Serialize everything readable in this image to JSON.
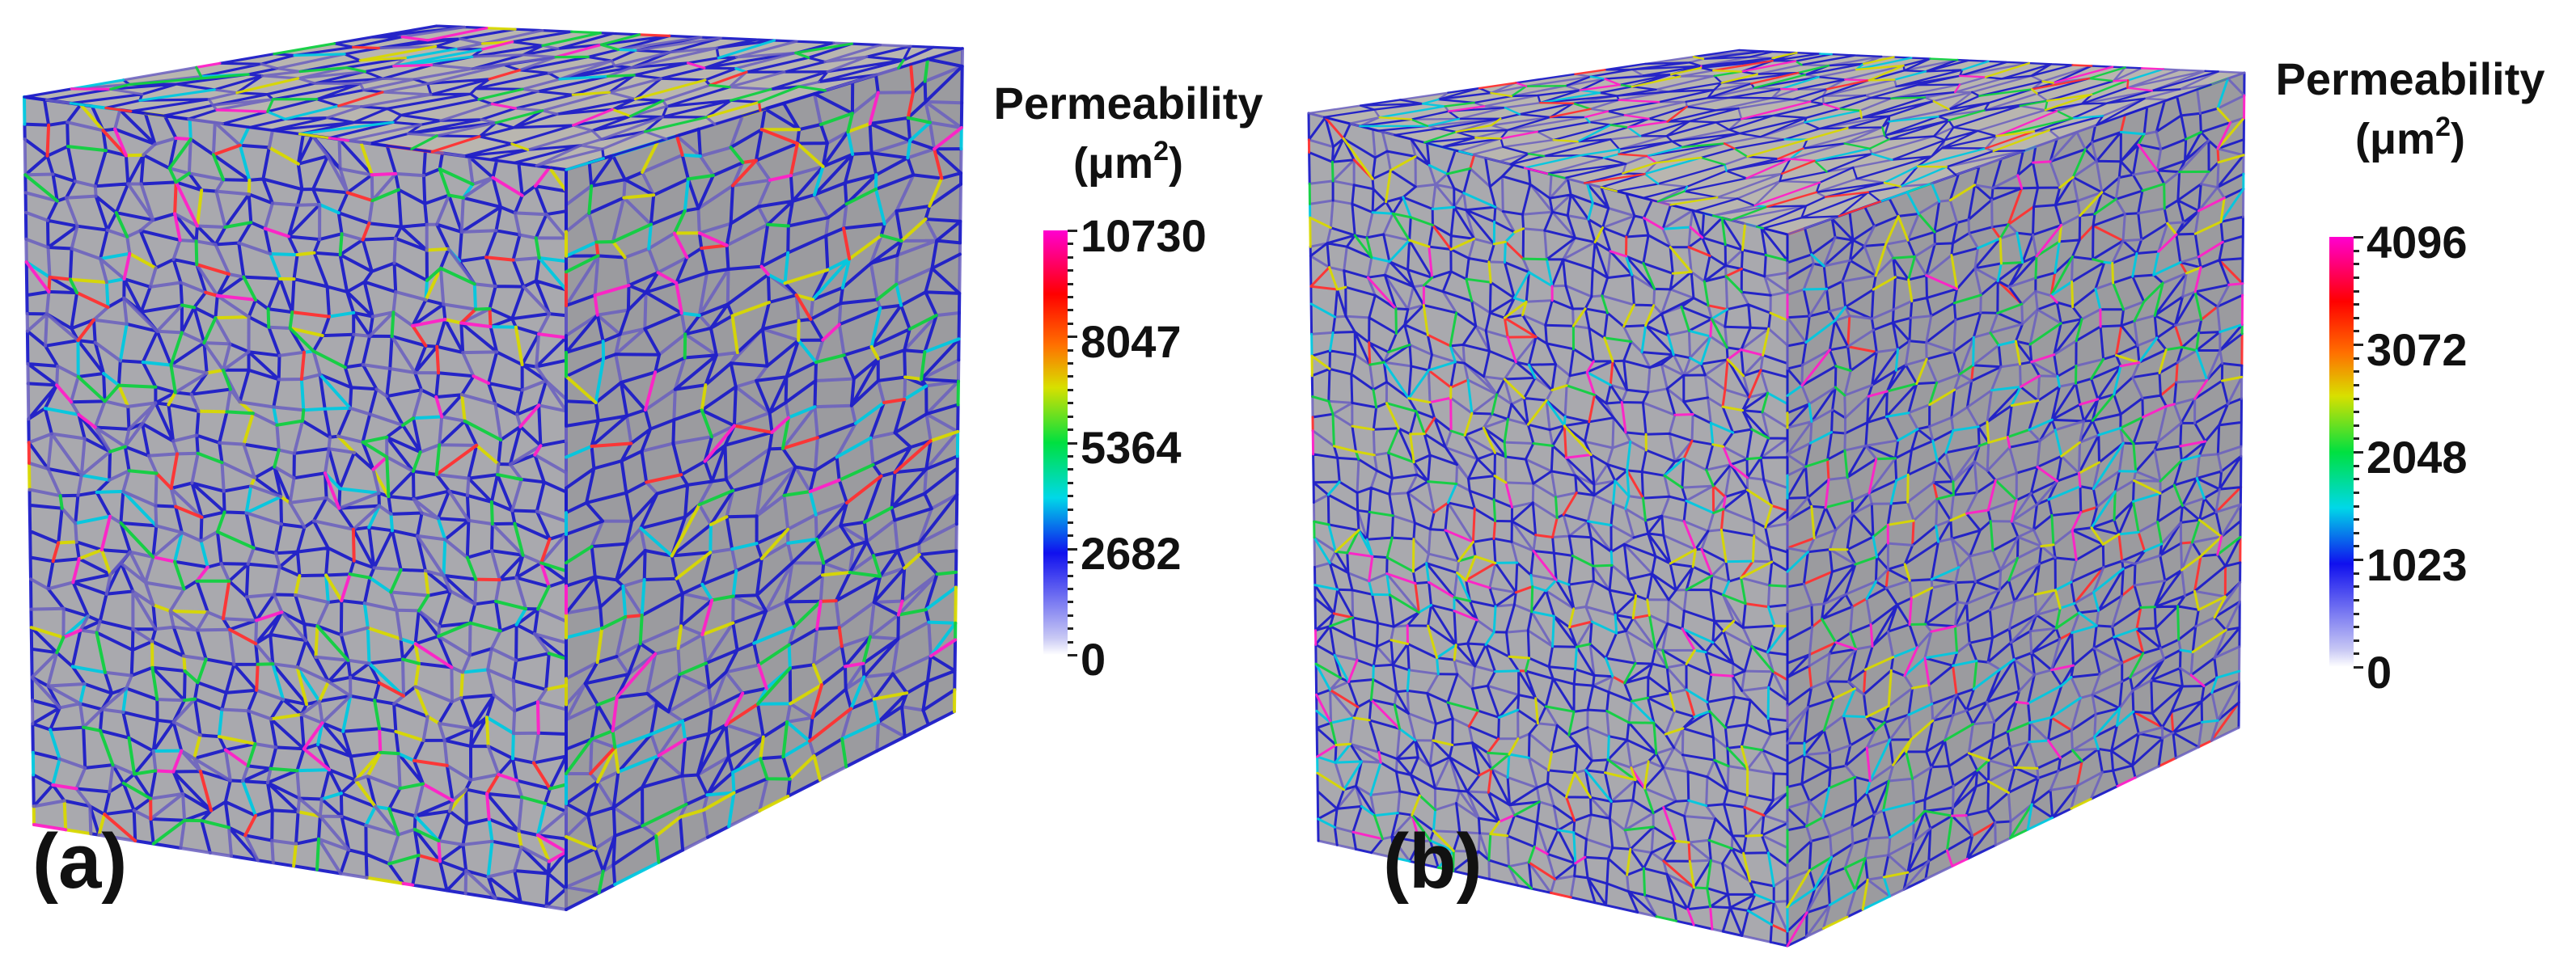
{
  "panels": [
    {
      "label": "(a)",
      "colorbar": {
        "title": "Permeability",
        "unit_base": "(μm",
        "unit_sup": "2",
        "unit_close": ")",
        "ticks": [
          "10730",
          "8047",
          "5364",
          "2682",
          "0"
        ],
        "max": 10730,
        "min": 0
      },
      "network_density": "coarse"
    },
    {
      "label": "(b)",
      "colorbar": {
        "title": "Permeability",
        "unit_base": "(μm",
        "unit_sup": "2",
        "unit_close": ")",
        "ticks": [
          "4096",
          "3072",
          "2048",
          "1023",
          "0"
        ],
        "max": 4096,
        "min": 0
      },
      "network_density": "fine"
    }
  ],
  "colors": {
    "face_front": "#a9a9ae",
    "face_side": "#9b9b9f",
    "face_top": "#b9b6b0",
    "edge_blue": "#1c1cc8",
    "edge_purple": "#6a5fc0"
  }
}
